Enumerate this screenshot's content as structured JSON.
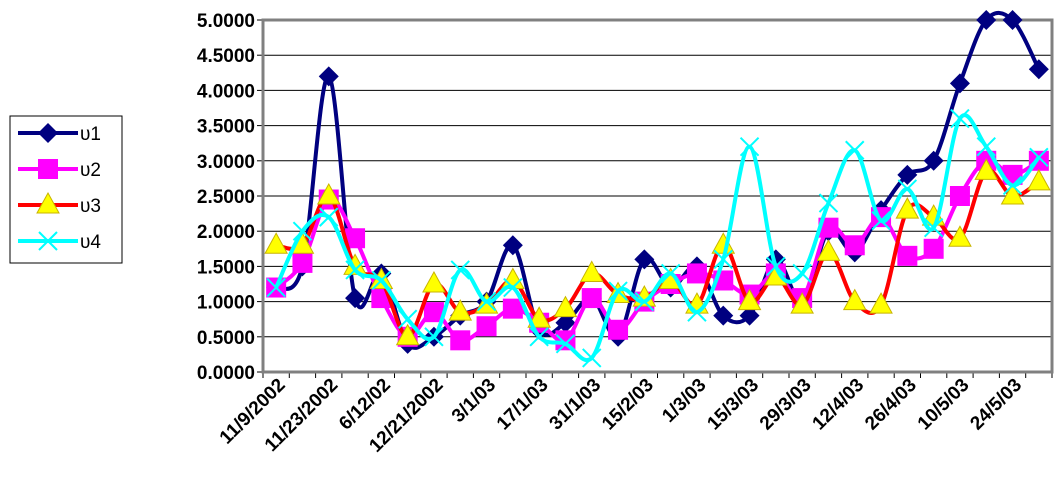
{
  "chart_data": {
    "type": "line",
    "title": "",
    "xlabel": "",
    "ylabel": "",
    "ylim": [
      0,
      5
    ],
    "yticks": [
      "0.0000",
      "0.5000",
      "1.0000",
      "1.5000",
      "2.0000",
      "2.5000",
      "3.0000",
      "3.5000",
      "4.0000",
      "4.5000",
      "5.0000"
    ],
    "xtick_labels": [
      "11/9/2002",
      "11/23/2002",
      "6/12/02",
      "12/21/2002",
      "3/1/03",
      "17/1/03",
      "31/1/03",
      "15/2/03",
      "1/3/03",
      "15/3/03",
      "29/3/03",
      "12/4/03",
      "26/4/03",
      "10/5/03",
      "24/5/03"
    ],
    "grid": "horizontal",
    "legend_position": "left",
    "series": [
      {
        "name": "υ1",
        "color": "#000080",
        "marker": "diamond",
        "values": [
          1.2,
          1.5,
          4.2,
          1.05,
          1.4,
          0.4,
          0.5,
          0.8,
          1.0,
          1.8,
          0.6,
          0.7,
          1.05,
          0.5,
          1.6,
          1.2,
          1.5,
          0.8,
          0.8,
          1.6,
          1.0,
          2.0,
          1.7,
          2.3,
          2.8,
          3.0,
          4.1,
          5.0,
          5.0,
          4.3
        ]
      },
      {
        "name": "υ2",
        "color": "#FF00FF",
        "marker": "square",
        "values": [
          1.2,
          1.55,
          2.45,
          1.9,
          1.05,
          0.5,
          0.85,
          0.45,
          0.65,
          0.9,
          0.7,
          0.45,
          1.05,
          0.6,
          1.0,
          1.25,
          1.4,
          1.3,
          1.1,
          1.4,
          1.05,
          2.05,
          1.8,
          2.2,
          1.65,
          1.75,
          2.5,
          3.0,
          2.8,
          3.0
        ]
      },
      {
        "name": "υ3",
        "color": "#FF0000",
        "marker": "triangle",
        "values": [
          1.8,
          1.8,
          2.5,
          1.5,
          1.3,
          0.5,
          1.25,
          0.85,
          0.95,
          1.3,
          0.75,
          0.9,
          1.4,
          1.1,
          1.05,
          1.3,
          0.95,
          1.8,
          1.0,
          1.35,
          0.95,
          1.7,
          1.0,
          0.95,
          2.3,
          2.2,
          1.9,
          2.85,
          2.5,
          2.7
        ]
      },
      {
        "name": "υ4",
        "color": "#00FFFF",
        "marker": "x",
        "values": [
          1.2,
          2.0,
          2.2,
          1.45,
          1.3,
          0.75,
          0.5,
          1.45,
          1.0,
          1.2,
          0.5,
          0.4,
          0.2,
          1.15,
          1.0,
          1.4,
          0.85,
          1.6,
          3.2,
          1.5,
          1.4,
          2.4,
          3.15,
          2.15,
          2.6,
          2.05,
          3.6,
          3.2,
          2.65,
          3.05
        ]
      }
    ]
  }
}
